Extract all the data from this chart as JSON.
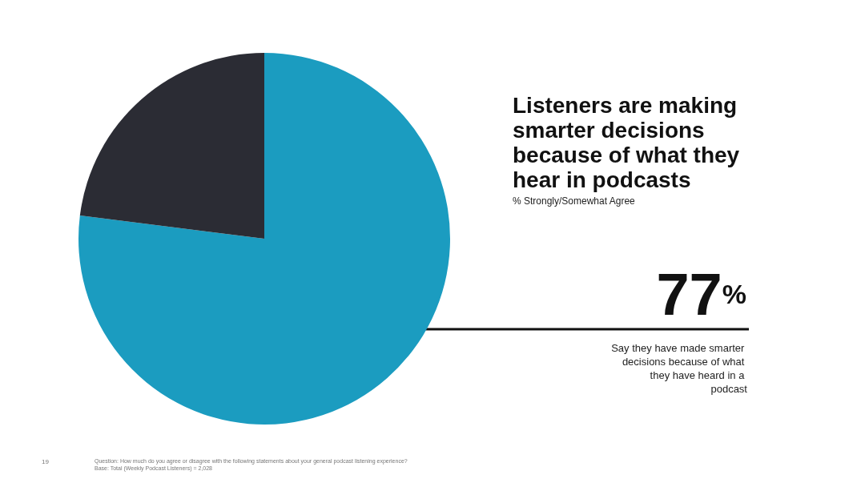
{
  "chart_data": {
    "type": "pie",
    "title": "Listeners are making smarter decisions because of what they hear in podcasts",
    "subtitle": "% Strongly/Somewhat Agree",
    "categories": [
      null,
      null
    ],
    "values": [
      77,
      23
    ],
    "colors": [
      "#1b9cc0",
      "#2b2c34"
    ],
    "value_labels": [
      "77%",
      null
    ],
    "annotations": [
      "Say they have made smarter decisions because of what they have heard in a podcast",
      "19",
      "Question: How much do you agree or disagree with the following statements about your general podcast listening experience?",
      "Base: Total (Weekly Podcast Listeners) = 2,028"
    ]
  }
}
